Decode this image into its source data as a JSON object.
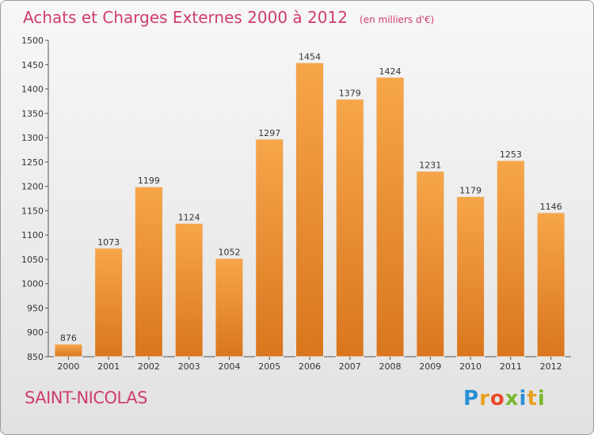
{
  "chart_data": {
    "type": "bar",
    "title": "Achats et Charges Externes 2000 à 2012",
    "subtitle": "(en milliers d'€)",
    "categories": [
      "2000",
      "2001",
      "2002",
      "2003",
      "2004",
      "2005",
      "2006",
      "2007",
      "2008",
      "2009",
      "2010",
      "2011",
      "2012"
    ],
    "values": [
      876,
      1073,
      1199,
      1124,
      1052,
      1297,
      1454,
      1379,
      1424,
      1231,
      1179,
      1253,
      1146
    ],
    "ylim": [
      850,
      1500
    ],
    "yticks": [
      850,
      900,
      950,
      1000,
      1050,
      1100,
      1150,
      1200,
      1250,
      1300,
      1350,
      1400,
      1450,
      1500
    ],
    "grid": false,
    "bar_color": "#f39c3d",
    "bar_color_dark": "#d9761e"
  },
  "footer": {
    "town": "SAINT-NICOLAS",
    "logo_letters": [
      "P",
      "r",
      "o",
      "x",
      "i",
      "t",
      "i"
    ],
    "logo_colors": [
      "#2a8fd6",
      "#e8a020",
      "#e84a2a",
      "#7ab82e",
      "#2a8fd6",
      "#e8a020",
      "#7ab82e"
    ]
  }
}
